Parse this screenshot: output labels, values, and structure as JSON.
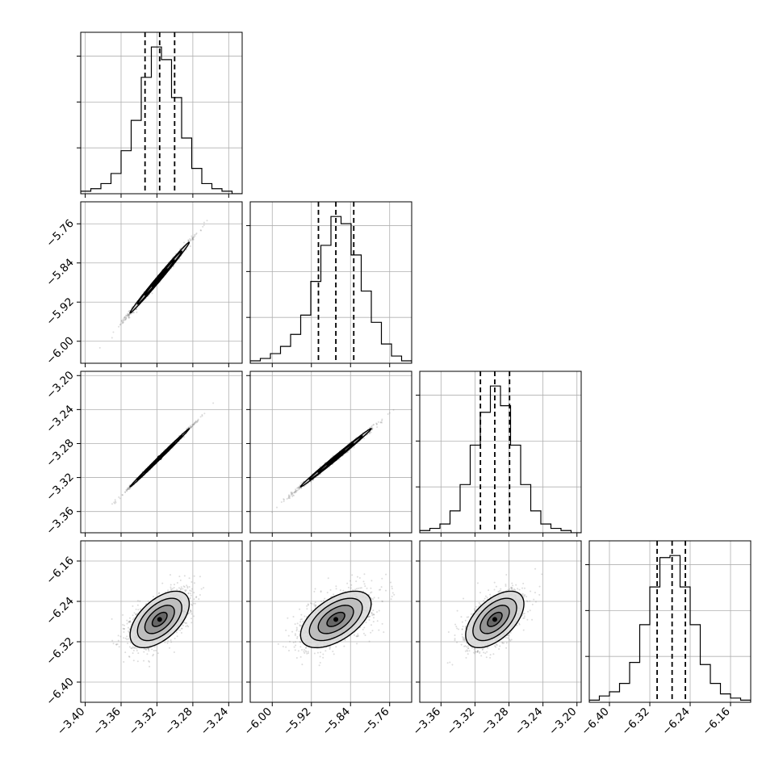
{
  "chart_data": {
    "type": "corner",
    "title": "",
    "parameters": [
      {
        "range": [
          -3.405,
          -3.225
        ],
        "ticks": [
          -3.4,
          -3.36,
          -3.32,
          -3.28,
          -3.24
        ],
        "tick_labels": [
          "−3.40",
          "−3.36",
          "−3.32",
          "−3.28",
          "−3.24"
        ],
        "quantiles": [
          -3.3333,
          -3.317,
          -3.3003
        ],
        "hist_counts": [
          1,
          2,
          4,
          8,
          17,
          29,
          46,
          58,
          53,
          38,
          22,
          10,
          4,
          2,
          1,
          0
        ]
      },
      {
        "range": [
          -6.045,
          -5.715
        ],
        "ticks": [
          -6.0,
          -5.92,
          -5.84,
          -5.76
        ],
        "tick_labels": [
          "−6.00",
          "−5.92",
          "−5.84",
          "−5.76"
        ],
        "quantiles": [
          -5.9056,
          -5.87,
          -5.8334
        ],
        "hist_counts": [
          1,
          2,
          4,
          7,
          12,
          20,
          34,
          49,
          61,
          58,
          45,
          30,
          17,
          8,
          3,
          1
        ]
      },
      {
        "range": [
          -3.385,
          -3.195
        ],
        "ticks": [
          -3.36,
          -3.32,
          -3.28,
          -3.24,
          -3.2
        ],
        "tick_labels": [
          "−3.36",
          "−3.32",
          "−3.28",
          "−3.24",
          "−3.20"
        ],
        "quantiles": [
          -3.3136,
          -3.2967,
          -3.2793
        ],
        "hist_counts": [
          1,
          2,
          4,
          10,
          22,
          40,
          55,
          67,
          58,
          40,
          22,
          10,
          4,
          2,
          1,
          0
        ]
      },
      {
        "range": [
          -6.44,
          -6.12
        ],
        "ticks": [
          -6.4,
          -6.32,
          -6.24,
          -6.16
        ],
        "tick_labels": [
          "−6.40",
          "−6.32",
          "−6.24",
          "−6.16"
        ],
        "quantiles": [
          -6.3055,
          -6.2758,
          -6.2495
        ],
        "hist_counts": [
          1,
          3,
          5,
          9,
          19,
          37,
          55,
          69,
          70,
          55,
          37,
          18,
          9,
          4,
          2,
          1
        ]
      }
    ],
    "correlations": {
      "1-0": 0.995,
      "2-0": 0.998,
      "2-1": 0.996,
      "3-0": 0.55,
      "3-1": 0.55,
      "3-2": 0.55
    },
    "scatter_color": "#808080",
    "line_color": "#000000",
    "grid": true,
    "legend": "none"
  }
}
